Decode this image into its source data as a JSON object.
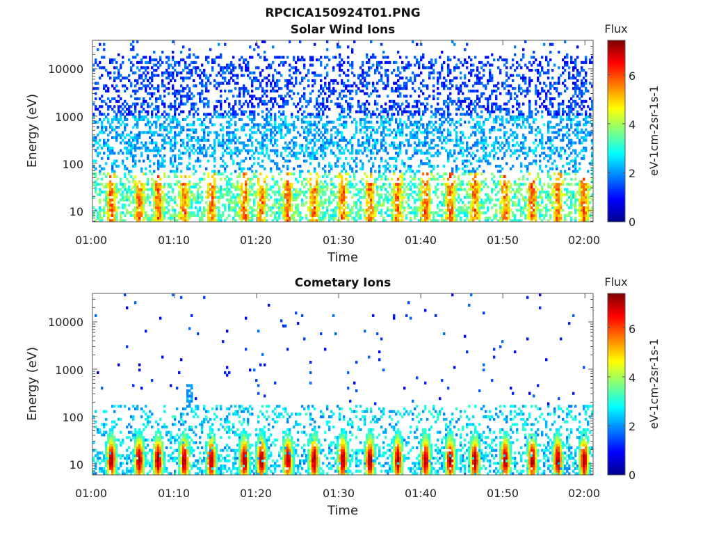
{
  "figure_title": "RPCICA150924T01.PNG",
  "chart_data": [
    {
      "type": "heatmap",
      "title": "Solar Wind Ions",
      "xlabel": "Time",
      "ylabel": "Energy (eV)",
      "x_ticks": [
        "01:00",
        "01:10",
        "01:20",
        "01:30",
        "01:40",
        "01:50",
        "02:00"
      ],
      "x_range_minutes": [
        0,
        61
      ],
      "y_scale": "log",
      "y_ticks": [
        "10",
        "100",
        "1000",
        "10000"
      ],
      "y_range": [
        5.8,
        40000
      ],
      "colorbar": {
        "title": "Flux",
        "label": "eV-1cm-2sr-1s-1",
        "ticks": [
          "0",
          "2",
          "4",
          "6"
        ],
        "range": [
          0,
          7.4
        ],
        "colormap": "jet"
      },
      "pulse_times_minutes": [
        2.3,
        5.7,
        8.0,
        11.2,
        14.5,
        18.5,
        20.6,
        23.8,
        27.0,
        30.5,
        33.8,
        37.2,
        40.6,
        43.6,
        46.6,
        50.3,
        53.6,
        56.7,
        59.9
      ],
      "background_flux_range": [
        0.8,
        2.0
      ],
      "low_energy_flux_range": [
        2.5,
        5.0
      ],
      "peak_flux": 6.5
    },
    {
      "type": "heatmap",
      "title": "Cometary Ions",
      "xlabel": "Time",
      "ylabel": "Energy (eV)",
      "x_ticks": [
        "01:00",
        "01:10",
        "01:20",
        "01:30",
        "01:40",
        "01:50",
        "02:00"
      ],
      "x_range_minutes": [
        0,
        61
      ],
      "y_scale": "log",
      "y_ticks": [
        "10",
        "100",
        "1000",
        "10000"
      ],
      "y_range": [
        5.8,
        40000
      ],
      "colorbar": {
        "title": "Flux",
        "label": "eV-1cm-2sr-1s-1",
        "ticks": [
          "0",
          "2",
          "4",
          "6"
        ],
        "range": [
          0,
          7.4
        ],
        "colormap": "jet"
      },
      "pulse_times_minutes": [
        2.3,
        5.7,
        8.0,
        11.2,
        14.5,
        18.5,
        20.6,
        23.8,
        27.0,
        30.5,
        33.8,
        37.2,
        40.6,
        43.6,
        46.6,
        50.3,
        53.6,
        56.7,
        59.9
      ],
      "pulse_peak_energy_ev": 12,
      "peak_flux": 7.0,
      "high_energy_burst": {
        "time_minutes": 11.8,
        "energy_range_ev": [
          150,
          500
        ],
        "flux": 1.8
      }
    }
  ]
}
